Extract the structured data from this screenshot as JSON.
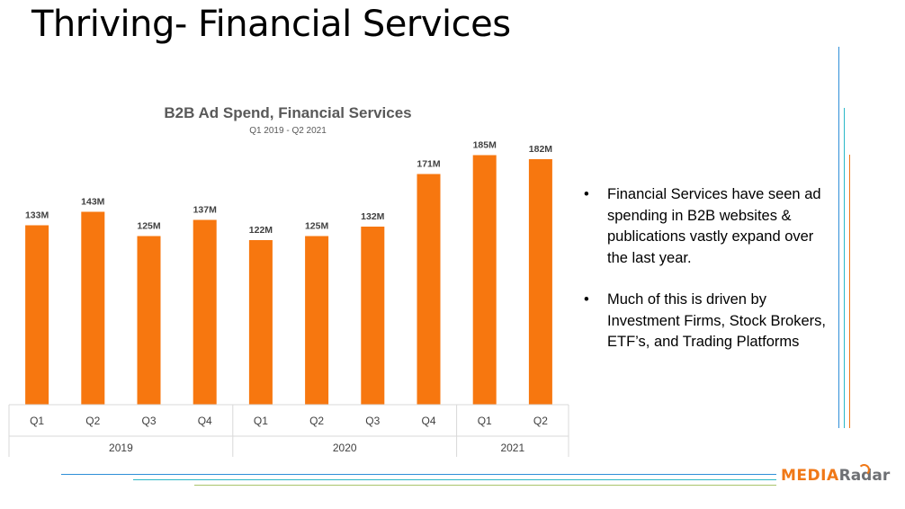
{
  "slide": {
    "title": "Thriving- Financial Services",
    "bullets": [
      "Financial Services have seen ad spending in B2B websites & publications vastly expand over the last year.",
      "Much of this is driven by Investment Firms, Stock Brokers, ETF’s, and Trading Platforms"
    ]
  },
  "logo": {
    "part1": "MEDIA",
    "part2": "Radar"
  },
  "colors": {
    "bar": "#f7770f",
    "axis": "#d9d9d9",
    "title_text": "#595959",
    "accent_blue": "#2f8fd8",
    "accent_teal": "#2ab8c8",
    "accent_orange": "#f07817"
  },
  "chart_data": {
    "type": "bar",
    "title": "B2B Ad Spend, Financial Services",
    "subtitle": "Q1 2019 - Q2 2021",
    "categories": [
      "Q1",
      "Q2",
      "Q3",
      "Q4",
      "Q1",
      "Q2",
      "Q3",
      "Q4",
      "Q1",
      "Q2"
    ],
    "groups": [
      {
        "label": "2019",
        "count": 4
      },
      {
        "label": "2020",
        "count": 4
      },
      {
        "label": "2021",
        "count": 2
      }
    ],
    "values": [
      133,
      143,
      125,
      137,
      122,
      125,
      132,
      171,
      185,
      182
    ],
    "data_labels": [
      "133M",
      "143M",
      "125M",
      "137M",
      "122M",
      "125M",
      "132M",
      "171M",
      "185M",
      "182M"
    ],
    "units": "M",
    "ylim": [
      0,
      200
    ],
    "grid": false,
    "xlabel": "",
    "ylabel": ""
  }
}
